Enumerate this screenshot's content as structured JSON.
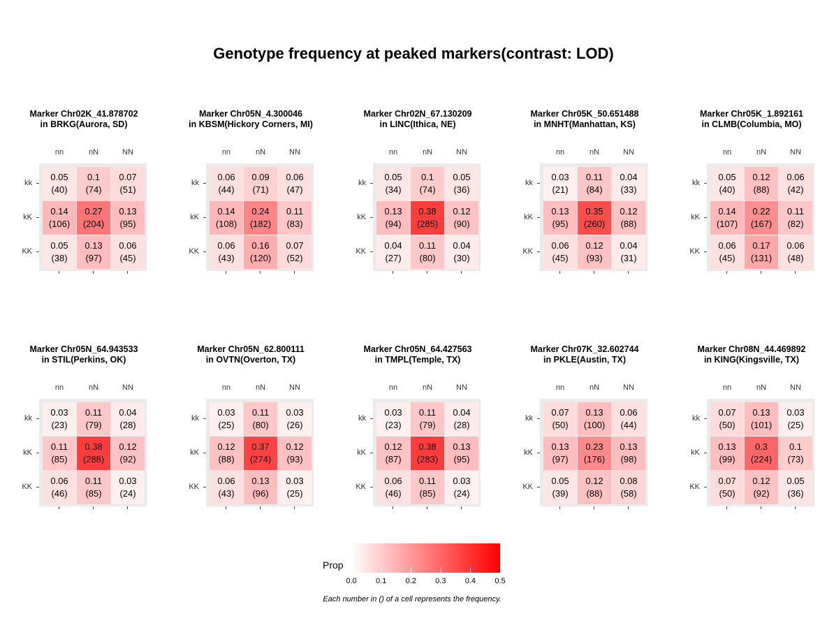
{
  "title": "Genotype frequency at peaked markers(contrast: LOD)",
  "chart_data": {
    "type": "heatmap",
    "x_categories": [
      "nn",
      "nN",
      "NN"
    ],
    "y_categories": [
      "kk",
      "kK",
      "KK"
    ],
    "legend": {
      "title": "Prop",
      "ticks": [
        "0.0",
        "0.1",
        "0.2",
        "0.3",
        "0.4",
        "0.5"
      ],
      "range": [
        0,
        0.5
      ],
      "low_color": "#ffffff",
      "high_color": "#ff0000"
    },
    "caption": "Each number in () of a cell represents the frequency.",
    "panels": [
      {
        "title_line1": "Marker Chr02K_41.878702",
        "title_line2": "in BRKG(Aurora, SD)",
        "rows": [
          [
            {
              "p": "0.05",
              "n": "(40)"
            },
            {
              "p": "0.1",
              "n": "(74)"
            },
            {
              "p": "0.07",
              "n": "(51)"
            }
          ],
          [
            {
              "p": "0.14",
              "n": "(106)"
            },
            {
              "p": "0.27",
              "n": "(204)"
            },
            {
              "p": "0.13",
              "n": "(95)"
            }
          ],
          [
            {
              "p": "0.05",
              "n": "(38)"
            },
            {
              "p": "0.13",
              "n": "(97)"
            },
            {
              "p": "0.06",
              "n": "(45)"
            }
          ]
        ]
      },
      {
        "title_line1": "Marker Chr05N_4.300046",
        "title_line2": "in KBSM(Hickory Corners, MI)",
        "rows": [
          [
            {
              "p": "0.06",
              "n": "(44)"
            },
            {
              "p": "0.09",
              "n": "(71)"
            },
            {
              "p": "0.06",
              "n": "(47)"
            }
          ],
          [
            {
              "p": "0.14",
              "n": "(108)"
            },
            {
              "p": "0.24",
              "n": "(182)"
            },
            {
              "p": "0.11",
              "n": "(83)"
            }
          ],
          [
            {
              "p": "0.06",
              "n": "(43)"
            },
            {
              "p": "0.16",
              "n": "(120)"
            },
            {
              "p": "0.07",
              "n": "(52)"
            }
          ]
        ]
      },
      {
        "title_line1": "Marker Chr02N_67.130209",
        "title_line2": "in LINC(Ithica, NE)",
        "rows": [
          [
            {
              "p": "0.05",
              "n": "(34)"
            },
            {
              "p": "0.1",
              "n": "(74)"
            },
            {
              "p": "0.05",
              "n": "(36)"
            }
          ],
          [
            {
              "p": "0.13",
              "n": "(94)"
            },
            {
              "p": "0.38",
              "n": "(285)"
            },
            {
              "p": "0.12",
              "n": "(90)"
            }
          ],
          [
            {
              "p": "0.04",
              "n": "(27)"
            },
            {
              "p": "0.11",
              "n": "(80)"
            },
            {
              "p": "0.04",
              "n": "(30)"
            }
          ]
        ]
      },
      {
        "title_line1": "Marker Chr05K_50.651488",
        "title_line2": "in MNHT(Manhattan, KS)",
        "rows": [
          [
            {
              "p": "0.03",
              "n": "(21)"
            },
            {
              "p": "0.11",
              "n": "(84)"
            },
            {
              "p": "0.04",
              "n": "(33)"
            }
          ],
          [
            {
              "p": "0.13",
              "n": "(95)"
            },
            {
              "p": "0.35",
              "n": "(260)"
            },
            {
              "p": "0.12",
              "n": "(88)"
            }
          ],
          [
            {
              "p": "0.06",
              "n": "(45)"
            },
            {
              "p": "0.12",
              "n": "(93)"
            },
            {
              "p": "0.04",
              "n": "(31)"
            }
          ]
        ]
      },
      {
        "title_line1": "Marker Chr05K_1.892161",
        "title_line2": "in CLMB(Columbia, MO)",
        "rows": [
          [
            {
              "p": "0.05",
              "n": "(40)"
            },
            {
              "p": "0.12",
              "n": "(88)"
            },
            {
              "p": "0.06",
              "n": "(42)"
            }
          ],
          [
            {
              "p": "0.14",
              "n": "(107)"
            },
            {
              "p": "0.22",
              "n": "(167)"
            },
            {
              "p": "0.11",
              "n": "(82)"
            }
          ],
          [
            {
              "p": "0.06",
              "n": "(45)"
            },
            {
              "p": "0.17",
              "n": "(131)"
            },
            {
              "p": "0.06",
              "n": "(48)"
            }
          ]
        ]
      },
      {
        "title_line1": "Marker Chr05N_64.943533",
        "title_line2": "in STIL(Perkins, OK)",
        "rows": [
          [
            {
              "p": "0.03",
              "n": "(23)"
            },
            {
              "p": "0.11",
              "n": "(79)"
            },
            {
              "p": "0.04",
              "n": "(28)"
            }
          ],
          [
            {
              "p": "0.11",
              "n": "(85)"
            },
            {
              "p": "0.38",
              "n": "(288)"
            },
            {
              "p": "0.12",
              "n": "(92)"
            }
          ],
          [
            {
              "p": "0.06",
              "n": "(46)"
            },
            {
              "p": "0.11",
              "n": "(85)"
            },
            {
              "p": "0.03",
              "n": "(24)"
            }
          ]
        ]
      },
      {
        "title_line1": "Marker Chr05N_62.800111",
        "title_line2": "in OVTN(Overton, TX)",
        "rows": [
          [
            {
              "p": "0.03",
              "n": "(25)"
            },
            {
              "p": "0.11",
              "n": "(80)"
            },
            {
              "p": "0.03",
              "n": "(26)"
            }
          ],
          [
            {
              "p": "0.12",
              "n": "(88)"
            },
            {
              "p": "0.37",
              "n": "(274)"
            },
            {
              "p": "0.12",
              "n": "(93)"
            }
          ],
          [
            {
              "p": "0.06",
              "n": "(43)"
            },
            {
              "p": "0.13",
              "n": "(96)"
            },
            {
              "p": "0.03",
              "n": "(25)"
            }
          ]
        ]
      },
      {
        "title_line1": "Marker Chr05N_64.427563",
        "title_line2": "in TMPL(Temple, TX)",
        "rows": [
          [
            {
              "p": "0.03",
              "n": "(23)"
            },
            {
              "p": "0.11",
              "n": "(79)"
            },
            {
              "p": "0.04",
              "n": "(28)"
            }
          ],
          [
            {
              "p": "0.12",
              "n": "(87)"
            },
            {
              "p": "0.38",
              "n": "(283)"
            },
            {
              "p": "0.13",
              "n": "(95)"
            }
          ],
          [
            {
              "p": "0.06",
              "n": "(46)"
            },
            {
              "p": "0.11",
              "n": "(85)"
            },
            {
              "p": "0.03",
              "n": "(24)"
            }
          ]
        ]
      },
      {
        "title_line1": "Marker Chr07K_32.602744",
        "title_line2": "in PKLE(Austin, TX)",
        "rows": [
          [
            {
              "p": "0.07",
              "n": "(50)"
            },
            {
              "p": "0.13",
              "n": "(100)"
            },
            {
              "p": "0.06",
              "n": "(44)"
            }
          ],
          [
            {
              "p": "0.13",
              "n": "(97)"
            },
            {
              "p": "0.23",
              "n": "(176)"
            },
            {
              "p": "0.13",
              "n": "(98)"
            }
          ],
          [
            {
              "p": "0.05",
              "n": "(39)"
            },
            {
              "p": "0.12",
              "n": "(88)"
            },
            {
              "p": "0.08",
              "n": "(58)"
            }
          ]
        ]
      },
      {
        "title_line1": "Marker Chr08N_44.469892",
        "title_line2": "in KING(Kingsville, TX)",
        "rows": [
          [
            {
              "p": "0.07",
              "n": "(50)"
            },
            {
              "p": "0.13",
              "n": "(101)"
            },
            {
              "p": "0.03",
              "n": "(25)"
            }
          ],
          [
            {
              "p": "0.13",
              "n": "(99)"
            },
            {
              "p": "0.3",
              "n": "(224)"
            },
            {
              "p": "0.1",
              "n": "(73)"
            }
          ],
          [
            {
              "p": "0.07",
              "n": "(50)"
            },
            {
              "p": "0.12",
              "n": "(92)"
            },
            {
              "p": "0.05",
              "n": "(36)"
            }
          ]
        ]
      }
    ]
  }
}
